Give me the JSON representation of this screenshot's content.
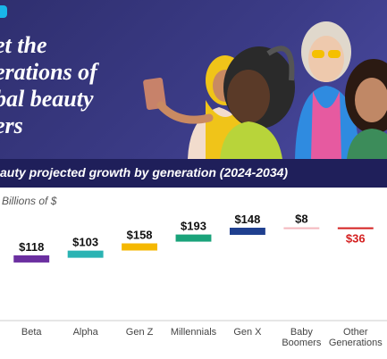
{
  "banner": {
    "headline_lines": [
      "et the",
      "erations of",
      "bal beauty",
      "ers"
    ]
  },
  "subtitle": "auty projected growth by generation (2024-2034)",
  "colors": {
    "banner_bg": "#3b3b86",
    "subtitle_bg": "#1f1f5a",
    "logo": "#19b6e9"
  },
  "chart_data": {
    "type": "bar",
    "subtype": "waterfall",
    "unit_label": "Billions of $",
    "categories": [
      "Beta",
      "Alpha",
      "Gen Z",
      "Millennials",
      "Gen X",
      "Baby Boomers",
      "Other Generations"
    ],
    "category_lines": [
      [
        "Beta"
      ],
      [
        "Alpha"
      ],
      [
        "Gen Z"
      ],
      [
        "Millennials"
      ],
      [
        "Gen X"
      ],
      [
        "Baby",
        "Boomers"
      ],
      [
        "Other",
        "Generations"
      ]
    ],
    "values": [
      118,
      103,
      158,
      193,
      148,
      8,
      -36
    ],
    "value_labels": [
      "$118",
      "$103",
      "$158",
      "$193",
      "$148",
      "$8",
      "$36"
    ],
    "colors": [
      "#6b2fa0",
      "#2ab3b3",
      "#f5b800",
      "#1aa37a",
      "#1f3f8f",
      "#f4b6bd",
      "#d42020"
    ],
    "label_colors": [
      "#111111",
      "#111111",
      "#111111",
      "#111111",
      "#111111",
      "#111111",
      "#d42020"
    ],
    "ylim": [
      0,
      850
    ],
    "grid": false,
    "legend": "none"
  }
}
